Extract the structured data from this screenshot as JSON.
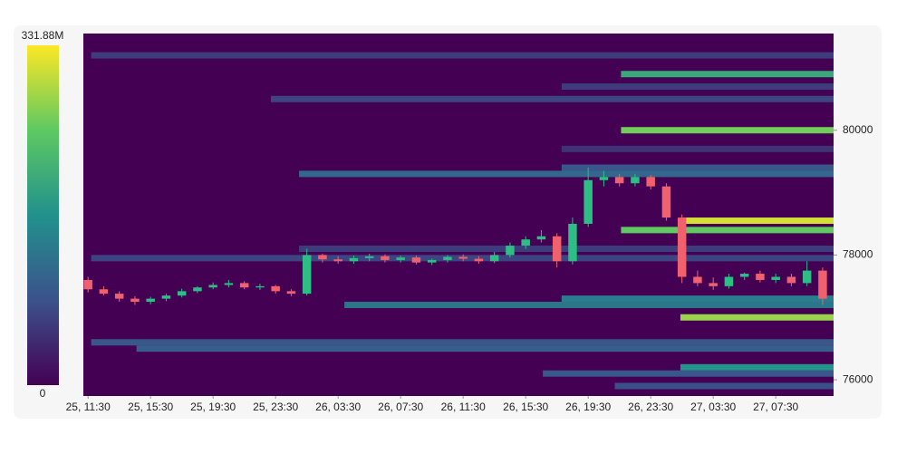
{
  "chart_data": {
    "type": "heatmap-candlestick",
    "x": [
      11.5,
      12.5,
      13.5,
      14.5,
      15.5,
      16.5,
      17.5,
      18.5,
      19.5,
      20.5,
      21.5,
      22.5,
      23.5,
      24.5,
      25.5,
      26.5,
      27.5,
      28.5,
      29.5,
      30.5,
      31.5,
      32.5,
      33.5,
      34.5,
      35.5,
      36.5,
      37.5,
      38.5,
      39.5,
      40.5,
      41.5,
      42.5,
      43.5,
      44.5,
      45.5,
      46.5,
      47.5,
      48.5,
      49.5,
      50.5,
      51.5,
      52.5,
      53.5,
      54.5,
      55.5,
      56.5,
      57.5,
      58.5
    ],
    "open": [
      77600,
      77450,
      77380,
      77300,
      77250,
      77300,
      77350,
      77420,
      77480,
      77520,
      77550,
      77480,
      77500,
      77420,
      77380,
      78000,
      77930,
      77900,
      77950,
      77980,
      77920,
      77960,
      77880,
      77920,
      77970,
      77940,
      77900,
      78000,
      78150,
      78250,
      78300,
      77900,
      78500,
      79200,
      79250,
      79150,
      79250,
      79100,
      78600,
      77650,
      77550,
      77500,
      77650,
      77700,
      77600,
      77650,
      77550,
      77750
    ],
    "high": [
      77650,
      77500,
      77420,
      77340,
      77330,
      77380,
      77460,
      77500,
      77560,
      77600,
      77580,
      77540,
      77520,
      77450,
      78100,
      78020,
      77980,
      77990,
      78020,
      78010,
      77990,
      77990,
      77940,
      78000,
      78010,
      77980,
      78050,
      78200,
      78300,
      78400,
      78350,
      78600,
      79400,
      79350,
      79300,
      79300,
      79280,
      79150,
      78650,
      77750,
      77640,
      77700,
      77720,
      77750,
      77700,
      77700,
      77900,
      77800
    ],
    "low": [
      77400,
      77350,
      77250,
      77200,
      77210,
      77260,
      77320,
      77390,
      77450,
      77480,
      77450,
      77440,
      77380,
      77340,
      77350,
      77880,
      77860,
      77860,
      77900,
      77880,
      77880,
      77850,
      77840,
      77880,
      77900,
      77860,
      77870,
      77960,
      78100,
      78200,
      77800,
      77850,
      78450,
      79100,
      79100,
      79100,
      79050,
      78550,
      77550,
      77500,
      77440,
      77460,
      77600,
      77560,
      77550,
      77500,
      77500,
      77200
    ],
    "close": [
      77450,
      77380,
      77300,
      77250,
      77300,
      77350,
      77420,
      77480,
      77520,
      77550,
      77480,
      77500,
      77420,
      77380,
      78000,
      77930,
      77900,
      77950,
      77980,
      77920,
      77960,
      77880,
      77920,
      77970,
      77940,
      77900,
      78000,
      78150,
      78250,
      78300,
      77900,
      78500,
      79200,
      79250,
      79150,
      79250,
      79100,
      78600,
      77650,
      77550,
      77500,
      77650,
      77700,
      77600,
      77650,
      77550,
      77750,
      77300
    ],
    "up_color": "#2ebd85",
    "down_color": "#f0616d",
    "bands": [
      {
        "price": 80900,
        "start": 45.6,
        "value": 200
      },
      {
        "price": 80000,
        "start": 45.6,
        "value": 260
      },
      {
        "price": 78550,
        "start": 49.4,
        "value": 310
      },
      {
        "price": 78400,
        "start": 45.6,
        "value": 250
      },
      {
        "price": 77000,
        "start": 49.4,
        "value": 280
      },
      {
        "price": 76200,
        "start": 49.4,
        "value": 170
      },
      {
        "price": 79300,
        "start": 25,
        "value": 110
      },
      {
        "price": 79400,
        "start": 41.8,
        "value": 90
      },
      {
        "price": 77200,
        "start": 27.9,
        "value": 130
      },
      {
        "price": 77300,
        "start": 41.8,
        "value": 140
      },
      {
        "price": 76600,
        "start": 11.7,
        "value": 90
      },
      {
        "price": 76500,
        "start": 14.6,
        "value": 100
      },
      {
        "price": 77950,
        "start": 11.7,
        "value": 70
      },
      {
        "price": 78100,
        "start": 25,
        "value": 60
      },
      {
        "price": 81200,
        "start": 11.7,
        "value": 60
      },
      {
        "price": 80500,
        "start": 23.2,
        "value": 70
      },
      {
        "price": 76100,
        "start": 40.6,
        "value": 90
      },
      {
        "price": 75900,
        "start": 45.2,
        "value": 80
      },
      {
        "price": 80700,
        "start": 41.8,
        "value": 60
      },
      {
        "price": 79700,
        "start": 41.8,
        "value": 50
      }
    ],
    "xlim": [
      11.2,
      59.2
    ],
    "xticks": [
      {
        "value": 11.5,
        "label": "25, 11:30"
      },
      {
        "value": 15.5,
        "label": "25, 15:30"
      },
      {
        "value": 19.5,
        "label": "25, 19:30"
      },
      {
        "value": 23.5,
        "label": "25, 23:30"
      },
      {
        "value": 27.5,
        "label": "26, 03:30"
      },
      {
        "value": 31.5,
        "label": "26, 07:30"
      },
      {
        "value": 35.5,
        "label": "26, 11:30"
      },
      {
        "value": 39.5,
        "label": "26, 15:30"
      },
      {
        "value": 43.5,
        "label": "26, 19:30"
      },
      {
        "value": 47.5,
        "label": "26, 23:30"
      },
      {
        "value": 51.5,
        "label": "27, 03:30"
      },
      {
        "value": 55.5,
        "label": "27, 07:30"
      }
    ],
    "ylim": [
      75740,
      81550
    ],
    "yticks": [
      76000,
      78000,
      80000
    ],
    "colorbar_lim": [
      0,
      331.88
    ],
    "colorbar_ticks": [
      0,
      {
        "value": 331.88,
        "label": "331.88M"
      }
    ]
  }
}
